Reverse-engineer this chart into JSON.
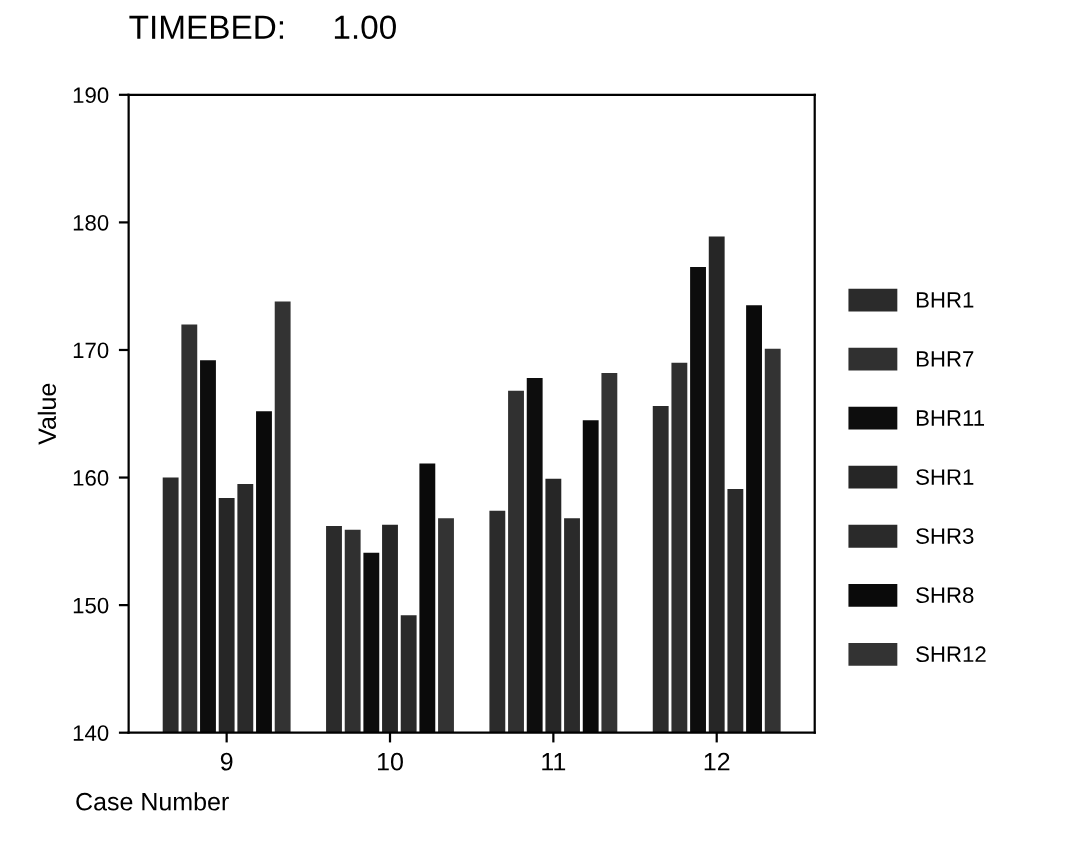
{
  "chart_data": {
    "type": "bar",
    "title": "TIMEBED:     1.00",
    "xlabel": "Case Number",
    "ylabel": "Value",
    "categories": [
      "9",
      "10",
      "11",
      "12"
    ],
    "series": [
      {
        "name": "BHR1",
        "color": "#2b2b2b",
        "values": [
          160,
          156.2,
          157.4,
          165.6
        ]
      },
      {
        "name": "BHR7",
        "color": "#303030",
        "values": [
          172,
          155.9,
          166.8,
          169
        ]
      },
      {
        "name": "BHR11",
        "color": "#0d0d0d",
        "values": [
          169.2,
          154.1,
          167.8,
          176.5
        ]
      },
      {
        "name": "SHR1",
        "color": "#262626",
        "values": [
          158.4,
          156.3,
          159.9,
          178.9
        ]
      },
      {
        "name": "SHR3",
        "color": "#2a2a2a",
        "values": [
          159.5,
          149.2,
          156.8,
          159.1
        ]
      },
      {
        "name": "SHR8",
        "color": "#0a0a0a",
        "values": [
          165.2,
          161.1,
          164.5,
          173.5
        ]
      },
      {
        "name": "SHR12",
        "color": "#333333",
        "values": [
          173.8,
          156.8,
          168.2,
          170.1
        ]
      }
    ],
    "ylim": [
      140,
      190
    ],
    "yticks": [
      140,
      150,
      160,
      170,
      180,
      190
    ],
    "grid": false,
    "legend": "right"
  }
}
